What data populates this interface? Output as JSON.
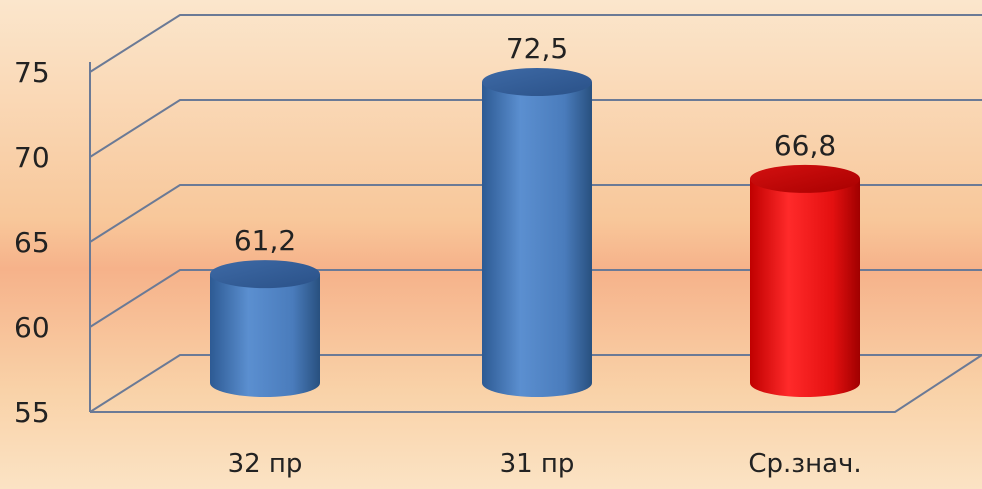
{
  "chart_data": {
    "type": "bar",
    "style": "3d-cylinder",
    "categories": [
      "32 пр",
      "31 пр",
      "Ср.знач."
    ],
    "values": [
      61.2,
      72.5,
      66.8
    ],
    "value_labels": [
      "61,2",
      "72,5",
      "66,8"
    ],
    "ylim": [
      55,
      75
    ],
    "yticks": [
      55,
      60,
      65,
      70,
      75
    ],
    "grid": true,
    "legend": "none",
    "colors": {
      "series": "#4f81bd",
      "highlight": "#ee1111",
      "grid": "#6b7a96"
    },
    "highlight_index": 2
  }
}
